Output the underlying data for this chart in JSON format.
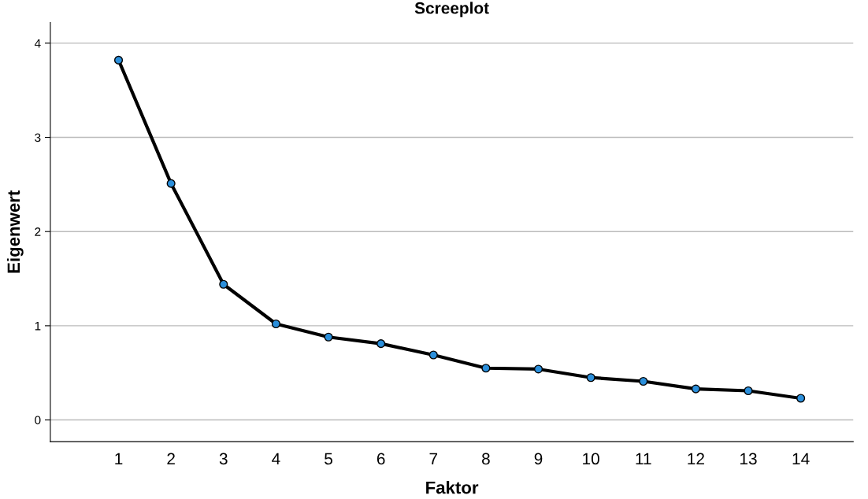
{
  "chart_data": {
    "type": "line",
    "title": "Screeplot",
    "xlabel": "Faktor",
    "ylabel": "Eigenwert",
    "x": [
      1,
      2,
      3,
      4,
      5,
      6,
      7,
      8,
      9,
      10,
      11,
      12,
      13,
      14
    ],
    "series": [
      {
        "color": "#000000",
        "values": [
          3.82,
          2.51,
          1.44,
          1.02,
          0.88,
          0.81,
          0.69,
          0.55,
          0.54,
          0.45,
          0.41,
          0.33,
          0.31,
          0.23
        ]
      }
    ],
    "marker": "circle",
    "line_style": "solid",
    "xlim": [
      -0.3,
      15
    ],
    "xticks": [
      1,
      2,
      3,
      4,
      5,
      6,
      7,
      8,
      9,
      10,
      11,
      12,
      13,
      14
    ],
    "ylim": [
      -0.23,
      4.22
    ],
    "yticks": [
      0,
      1,
      2,
      3,
      4
    ],
    "grid": "y"
  }
}
